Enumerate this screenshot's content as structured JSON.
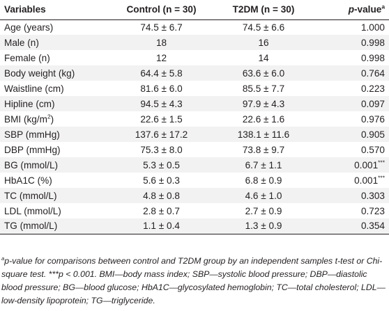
{
  "table": {
    "headers": {
      "variables": "Variables",
      "control": "Control (n = 30)",
      "t2dm": "T2DM (n = 30)",
      "p_prefix": "p",
      "p_suffix": "-value",
      "p_sup": "a"
    },
    "rows": [
      {
        "label": "Age (years)",
        "control": "74.5 ± 6.7",
        "t2dm": "74.5 ± 6.6",
        "p": "1.000"
      },
      {
        "label": "Male (n)",
        "control": "18",
        "t2dm": "16",
        "p": "0.998"
      },
      {
        "label": "Female (n)",
        "control": "12",
        "t2dm": "14",
        "p": "0.998"
      },
      {
        "label": "Body weight (kg)",
        "control": "64.4 ± 5.8",
        "t2dm": "63.6 ± 6.0",
        "p": "0.764"
      },
      {
        "label": "Waistline (cm)",
        "control": "81.6 ± 6.0",
        "t2dm": "85.5 ± 7.7",
        "p": "0.223"
      },
      {
        "label": "Hipline (cm)",
        "control": "94.5 ± 4.3",
        "t2dm": "97.9 ± 4.3",
        "p": "0.097"
      },
      {
        "label": "BMI (kg/m",
        "label_sup": "2",
        "label_after": ")",
        "control": "22.6 ± 1.5",
        "t2dm": "22.6 ± 1.6",
        "p": "0.976"
      },
      {
        "label": "SBP (mmHg)",
        "control": "137.6 ± 17.2",
        "t2dm": "138.1 ± 11.6",
        "p": "0.905"
      },
      {
        "label": "DBP (mmHg)",
        "control": "75.3 ± 8.0",
        "t2dm": "73.8 ± 9.7",
        "p": "0.570"
      },
      {
        "label": "BG (mmol/L)",
        "control": "5.3 ± 0.5",
        "t2dm": "6.7 ± 1.1",
        "p": "0.001",
        "p_sup": "***"
      },
      {
        "label": "HbA1C (%)",
        "control": "5.6 ± 0.3",
        "t2dm": "6.8 ± 0.9",
        "p": "0.001",
        "p_sup": "***"
      },
      {
        "label": "TC (mmol/L)",
        "control": "4.8 ± 0.8",
        "t2dm": "4.6 ± 1.0",
        "p": "0.303"
      },
      {
        "label": "LDL (mmol/L)",
        "control": "2.8 ± 0.7",
        "t2dm": "2.7 ± 0.9",
        "p": "0.723"
      },
      {
        "label": "TG (mmol/L)",
        "control": "1.1 ± 0.4",
        "t2dm": "1.3 ± 0.9",
        "p": "0.354"
      }
    ]
  },
  "footnote": {
    "sup": "a",
    "text": "p-value for comparisons between control and T2DM group by an independent samples t-test or Chi-square test. ***p < 0.001. BMI—body mass index; SBP—systolic blood pressure; DBP—diastolic blood pressure; BG—blood glucose; HbA1C—glycosylated hemoglobin; TC—total cholesterol; LDL—low-density lipoprotein; TG—triglyceride."
  }
}
